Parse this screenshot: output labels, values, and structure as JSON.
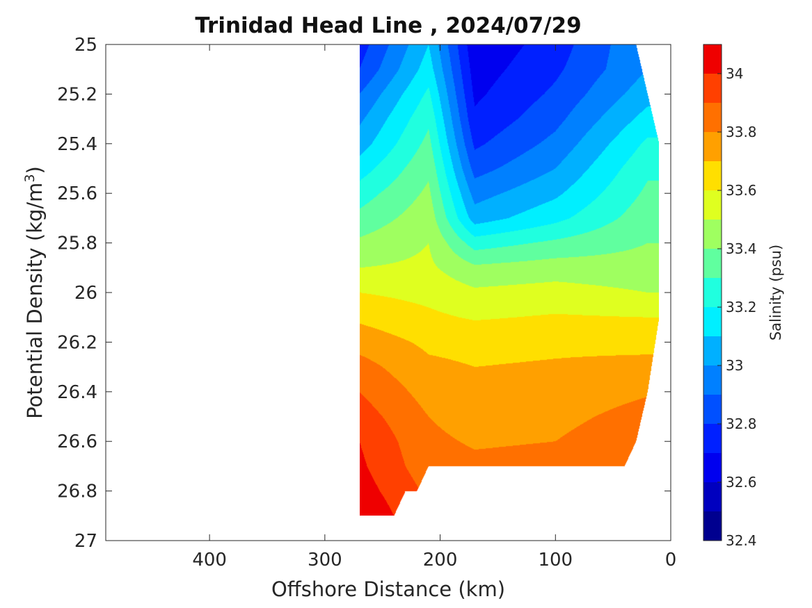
{
  "chart_data": {
    "type": "contour",
    "title": "Trinidad Head Line , 2024/07/29",
    "xlabel": "Offshore Distance (km)",
    "ylabel": "Potential Density (kg/m3)",
    "ylabel_main": "Potential Density (kg/m",
    "ylabel_sup": "3",
    "ylabel_close": ")",
    "xlim": [
      490,
      0
    ],
    "x_reversed": true,
    "ylim": [
      25,
      27
    ],
    "y_reversed": true,
    "x_ticks": [
      400,
      300,
      200,
      100,
      0
    ],
    "x_tick_labels": [
      "400",
      "300",
      "200",
      "100",
      "0"
    ],
    "y_ticks": [
      25,
      25.2,
      25.4,
      25.6,
      25.8,
      26,
      26.2,
      26.4,
      26.6,
      26.8,
      27
    ],
    "y_tick_labels": [
      "25",
      "25.2",
      "25.4",
      "25.6",
      "25.8",
      "26",
      "26.2",
      "26.4",
      "26.6",
      "26.8",
      "27"
    ],
    "colorbar": {
      "label": "Salinity (psu)",
      "range": [
        32.4,
        34.1
      ],
      "levels": [
        32.4,
        32.5,
        32.6,
        32.7,
        32.8,
        32.9,
        33.0,
        33.1,
        33.2,
        33.3,
        33.4,
        33.5,
        33.6,
        33.7,
        33.8,
        33.9,
        34.0,
        34.1
      ],
      "colors": [
        "#00008f",
        "#0000bf",
        "#0000ef",
        "#0020ff",
        "#0050ff",
        "#0080ff",
        "#00b0ff",
        "#00efff",
        "#20ffdf",
        "#60ff9f",
        "#9fff60",
        "#dfff20",
        "#ffdf00",
        "#ffa000",
        "#ff7000",
        "#ff4000",
        "#ef0000",
        "#af0000"
      ],
      "ticks": [
        32.4,
        32.6,
        32.8,
        33.0,
        33.2,
        33.4,
        33.6,
        33.8,
        34.0
      ],
      "tick_labels": [
        "32.4",
        "32.6",
        "32.8",
        "33",
        "33.2",
        "33.4",
        "33.6",
        "33.8",
        "34"
      ]
    },
    "stations_km": [
      270,
      260,
      250,
      240,
      230,
      220,
      210,
      200,
      190,
      180,
      170,
      160,
      150,
      140,
      130,
      120,
      110,
      100,
      90,
      80,
      70,
      60,
      50,
      40,
      30,
      20,
      10
    ],
    "density_levels": [
      25.0,
      25.1,
      25.2,
      25.3,
      25.4,
      25.5,
      25.6,
      25.7,
      25.8,
      25.9,
      26.0,
      26.1,
      26.2,
      26.3,
      26.4,
      26.5,
      26.6,
      26.7,
      26.8,
      26.9
    ],
    "data_bottom_density": [
      26.9,
      26.9,
      26.9,
      26.9,
      26.8,
      26.8,
      26.7,
      26.7,
      26.7,
      26.7,
      26.7,
      26.7,
      26.7,
      26.7,
      26.7,
      26.7,
      26.7,
      26.7,
      26.7,
      26.7,
      26.7,
      26.7,
      26.7,
      26.7,
      26.6,
      26.4,
      26.1
    ],
    "data_top_density": [
      25.0,
      25.0,
      25.0,
      25.0,
      25.0,
      25.0,
      25.0,
      25.0,
      25.0,
      25.0,
      25.0,
      25.0,
      25.0,
      25.0,
      25.0,
      25.0,
      25.0,
      25.0,
      25.0,
      25.0,
      25.0,
      25.0,
      25.0,
      25.0,
      25.0,
      25.2,
      25.4
    ],
    "salinity_profiles": {
      "far_offshore_270km": [
        32.75,
        32.8,
        32.9,
        32.98,
        33.05,
        33.15,
        33.25,
        33.33,
        33.42,
        33.5,
        33.6,
        33.68,
        33.76,
        33.84,
        33.9,
        33.95,
        34.0,
        34.02,
        34.05,
        34.1
      ],
      "front_210km": [
        33.1,
        33.15,
        33.22,
        33.28,
        33.33,
        33.38,
        33.42,
        33.46,
        33.5,
        33.52,
        33.57,
        33.62,
        33.68,
        33.72,
        33.76,
        33.8,
        33.82,
        33.84,
        33.88,
        33.9
      ],
      "jet_core_170km": [
        32.62,
        32.65,
        32.68,
        32.72,
        32.78,
        32.86,
        32.96,
        33.05,
        33.25,
        33.42,
        33.52,
        33.59,
        33.67,
        33.7,
        33.73,
        33.76,
        33.79,
        33.82,
        33.84,
        33.86
      ],
      "mid_shelf_100km": [
        32.75,
        32.78,
        32.82,
        32.87,
        32.93,
        33.0,
        33.08,
        33.17,
        33.32,
        33.45,
        33.54,
        33.61,
        33.68,
        33.71,
        33.74,
        33.77,
        33.8,
        33.83,
        33.85,
        33.87
      ],
      "nearshore_20km": [
        33.0,
        33.0,
        33.06,
        33.14,
        33.22,
        33.28,
        33.32,
        33.36,
        33.4,
        33.44,
        33.5,
        33.6,
        33.67,
        33.73,
        33.79,
        33.84,
        33.88,
        33.9,
        33.92,
        33.93
      ]
    }
  }
}
